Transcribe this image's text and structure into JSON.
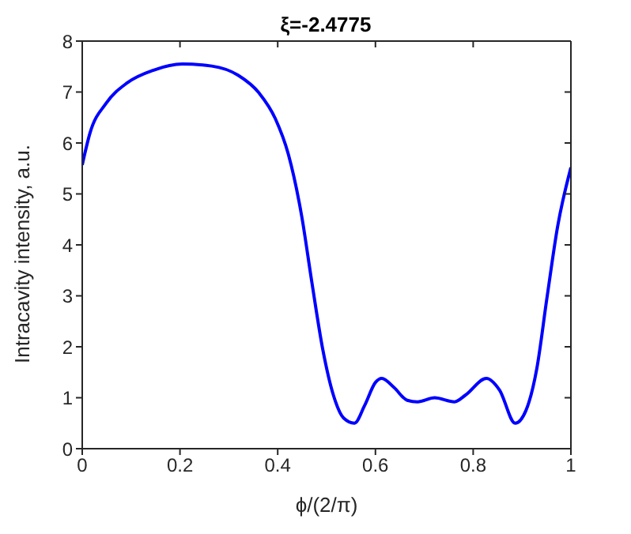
{
  "chart_data": {
    "type": "line",
    "title": "ξ=-2.4775",
    "xlabel": "ϕ/(2/π)",
    "ylabel": "Intracavity intensity, a.u.",
    "x": [
      0,
      0.016,
      0.049,
      0.092,
      0.146,
      0.205,
      0.265,
      0.319,
      0.362,
      0.395,
      0.422,
      0.449,
      0.47,
      0.492,
      0.514,
      0.535,
      0.557,
      0.578,
      0.6,
      0.613,
      0.638,
      0.665,
      0.686,
      0.721,
      0.762,
      0.784,
      0.827,
      0.854,
      0.886,
      0.908,
      0.93,
      0.951,
      0.973,
      1
    ],
    "series": [
      {
        "color": "#0000ff",
        "values": [
          5.57,
          6.2,
          6.78,
          7.18,
          7.43,
          7.55,
          7.51,
          7.33,
          6.98,
          6.48,
          5.77,
          4.57,
          3.26,
          1.96,
          1.05,
          0.6,
          0.5,
          0.85,
          1.3,
          1.38,
          1.2,
          0.95,
          0.92,
          1.0,
          0.92,
          1.05,
          1.38,
          1.15,
          0.5,
          0.75,
          1.56,
          2.96,
          4.37,
          5.52
        ]
      }
    ],
    "xlim": [
      0,
      1
    ],
    "xticks": [
      0,
      {
        "value": 0.2,
        "label": "0.2"
      },
      {
        "value": 0.4,
        "label": "0.4"
      },
      {
        "value": 0.6,
        "label": "0.6"
      },
      {
        "value": 0.8,
        "label": "0.8"
      },
      1
    ],
    "ylim": [
      0,
      8
    ],
    "yticks": [
      0,
      1,
      2,
      3,
      4,
      5,
      6,
      7,
      8
    ],
    "marker": "none",
    "line_style": "solid"
  }
}
